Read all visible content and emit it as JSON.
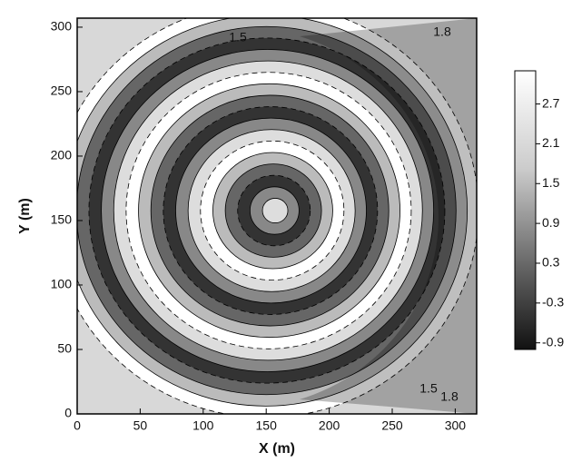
{
  "chart_data": {
    "type": "contour",
    "x_label": "X (m)",
    "y_label": "Y (m)",
    "xlim": [
      0,
      317
    ],
    "ylim": [
      0,
      307
    ],
    "xticks": [
      0,
      50,
      100,
      150,
      200,
      250,
      300
    ],
    "yticks": [
      0,
      50,
      100,
      150,
      200,
      250,
      300
    ],
    "colorbar": {
      "lim": [
        -1.0,
        3.2
      ],
      "ticks": [
        2.7,
        2.1,
        1.5,
        0.9,
        0.3,
        -0.3,
        -0.9
      ]
    },
    "annotations": [
      "1.5",
      "1.8",
      "1.8",
      "1.5"
    ]
  }
}
